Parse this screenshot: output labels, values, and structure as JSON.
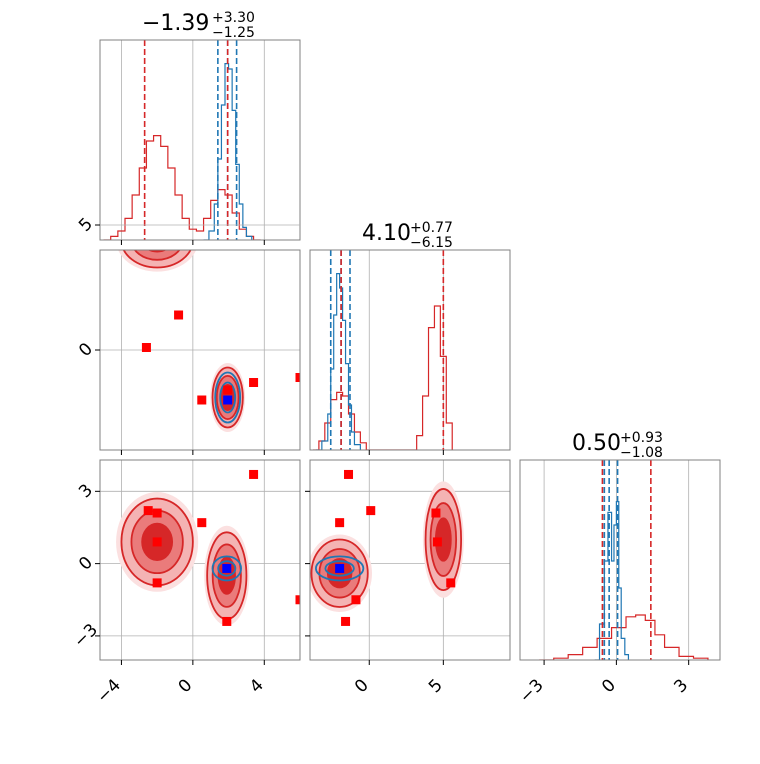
{
  "chart_data": {
    "type": "corner",
    "colors": {
      "red": "#d62728",
      "blue": "#1f77b4",
      "marker_red": "#ff0000",
      "marker_blue": "#0000ff"
    },
    "grid": true,
    "parameters": [
      {
        "title": {
          "value": "−1.39",
          "plus": "+3.30",
          "minus": "−1.25"
        },
        "range": [
          -5.2,
          6.0
        ],
        "ticks": [
          -4,
          0,
          4
        ],
        "tick_labels": [
          "−4",
          "0",
          "4"
        ]
      },
      {
        "title": {
          "value": "4.10",
          "plus": "+0.77",
          "minus": "−6.15"
        },
        "range": [
          -4.0,
          4.0
        ],
        "ticks": [
          0,
          5
        ],
        "tick_labels": [
          "0",
          "5"
        ],
        "x_range": [
          -4.0,
          9.5
        ]
      },
      {
        "title": {
          "value": "0.50",
          "plus": "+0.93",
          "minus": "−1.08"
        },
        "range": [
          -4.0,
          4.3
        ],
        "ticks": [
          -3,
          0,
          3
        ],
        "tick_labels": [
          "−3",
          "0",
          "3"
        ]
      }
    ],
    "diagonals": [
      {
        "red_hist": {
          "x": [
            -5.0,
            -4.6,
            -4.2,
            -3.8,
            -3.4,
            -3.0,
            -2.6,
            -2.2,
            -1.8,
            -1.4,
            -1.0,
            -0.6,
            -0.2,
            0.2,
            0.6,
            1.0,
            1.4,
            1.8,
            2.2,
            2.6,
            3.0,
            3.4,
            3.8
          ],
          "y": [
            0.0,
            0.02,
            0.05,
            0.12,
            0.25,
            0.4,
            0.55,
            0.58,
            0.52,
            0.4,
            0.25,
            0.12,
            0.06,
            0.05,
            0.12,
            0.22,
            0.28,
            0.25,
            0.15,
            0.06,
            0.02,
            0.0,
            0.0
          ]
        },
        "blue_hist": {
          "x": [
            0.6,
            0.9,
            1.2,
            1.4,
            1.6,
            1.8,
            2.0,
            2.2,
            2.4,
            2.6,
            2.8,
            3.0,
            3.3
          ],
          "y": [
            0.0,
            0.05,
            0.2,
            0.45,
            0.75,
            0.98,
            0.95,
            0.72,
            0.42,
            0.2,
            0.07,
            0.02,
            0.0
          ]
        },
        "red_lines": [
          -2.7,
          1.95
        ],
        "blue_lines": [
          1.4,
          1.95,
          2.45
        ]
      },
      {
        "red_hist": {
          "x": [
            -3.8,
            -3.4,
            -3.0,
            -2.6,
            -2.2,
            -1.8,
            -1.4,
            -1.0,
            -0.6,
            -0.2,
            0.2,
            2.8,
            3.2,
            3.6,
            4.0,
            4.4,
            4.8,
            5.2,
            5.6
          ],
          "y": [
            0.0,
            0.05,
            0.15,
            0.28,
            0.32,
            0.3,
            0.2,
            0.1,
            0.04,
            0.0,
            0.0,
            0.0,
            0.08,
            0.3,
            0.68,
            0.8,
            0.52,
            0.15,
            0.0
          ],
          "x_note": "second parameter density"
        },
        "blue_hist": {
          "x": [
            -3.6,
            -3.2,
            -2.8,
            -2.6,
            -2.4,
            -2.2,
            -2.0,
            -1.8,
            -1.6,
            -1.4,
            -1.2,
            -1.0,
            -0.6
          ],
          "y": [
            0.0,
            0.05,
            0.2,
            0.45,
            0.75,
            0.98,
            0.9,
            0.72,
            0.48,
            0.25,
            0.1,
            0.03,
            0.0
          ]
        },
        "red_lines": [
          -1.9,
          5.0
        ],
        "blue_lines": [
          -2.6,
          -1.9,
          -1.3
        ]
      },
      {
        "red_hist": {
          "x": [
            -3.2,
            -2.6,
            -2.0,
            -1.4,
            -0.8,
            -0.2,
            0.4,
            0.8,
            1.2,
            1.6,
            2.0,
            2.6,
            3.2,
            3.8
          ],
          "y": [
            0.0,
            0.01,
            0.03,
            0.07,
            0.12,
            0.18,
            0.24,
            0.25,
            0.22,
            0.14,
            0.07,
            0.02,
            0.01,
            0.0
          ]
        },
        "blue_hist": {
          "x": [
            -0.9,
            -0.7,
            -0.5,
            -0.35,
            -0.2,
            -0.1,
            0.0,
            0.1,
            0.2,
            0.35,
            0.5
          ],
          "y": [
            0.0,
            0.2,
            0.55,
            0.82,
            0.55,
            0.75,
            0.88,
            0.4,
            0.12,
            0.03,
            0.0
          ]
        },
        "red_lines": [
          -0.58,
          1.43
        ],
        "blue_lines": [
          -0.5,
          -0.3,
          0.05
        ]
      }
    ],
    "off_diagonals": [
      {
        "row": 1,
        "col": 0,
        "red_clusters": [
          {
            "cx": -2.0,
            "cy": 4.4,
            "rx": 2.0,
            "ry": 1.1
          },
          {
            "cx": 1.95,
            "cy": -1.9,
            "rx": 0.85,
            "ry": 1.2
          }
        ],
        "blue_clusters": [
          {
            "cx": 1.95,
            "cy": -1.9,
            "rx": 0.7,
            "ry": 1.0
          }
        ],
        "red_markers": [
          [
            -2.0,
            5.7
          ],
          [
            -2.0,
            4.3
          ],
          [
            -0.8,
            1.4
          ],
          [
            -2.6,
            0.1
          ],
          [
            0.5,
            -2.0
          ],
          [
            3.4,
            -1.3
          ],
          [
            6.0,
            -1.1
          ],
          [
            1.95,
            -1.6
          ]
        ],
        "blue_marker": [
          1.95,
          -2.0
        ]
      },
      {
        "row": 2,
        "col": 0,
        "red_clusters": [
          {
            "cx": -2.0,
            "cy": 0.9,
            "rx": 2.0,
            "ry": 1.8
          },
          {
            "cx": 1.9,
            "cy": -0.5,
            "rx": 1.1,
            "ry": 1.8
          }
        ],
        "blue_clusters": [
          {
            "cx": 1.9,
            "cy": -0.2,
            "rx": 0.8,
            "ry": 0.5
          }
        ],
        "red_markers": [
          [
            -2.5,
            2.2
          ],
          [
            -2.0,
            2.1
          ],
          [
            0.5,
            1.7
          ],
          [
            -2.0,
            0.9
          ],
          [
            -2.0,
            -0.8
          ],
          [
            3.4,
            3.7
          ],
          [
            6.0,
            -1.5
          ],
          [
            1.9,
            -2.4
          ]
        ],
        "blue_marker": [
          1.9,
          -0.2
        ]
      },
      {
        "row": 2,
        "col": 1,
        "red_clusters": [
          {
            "cx": -2.0,
            "cy": -0.4,
            "rx": 1.9,
            "ry": 1.4
          },
          {
            "cx": 5.0,
            "cy": 1.0,
            "rx": 1.2,
            "ry": 2.1
          }
        ],
        "blue_clusters": [
          {
            "cx": -2.0,
            "cy": -0.2,
            "rx": 1.6,
            "ry": 0.5
          }
        ],
        "red_markers": [
          [
            -1.4,
            3.7
          ],
          [
            -2.0,
            1.7
          ],
          [
            0.1,
            2.2
          ],
          [
            4.5,
            2.1
          ],
          [
            4.6,
            0.9
          ],
          [
            5.5,
            -0.8
          ],
          [
            -0.9,
            -1.5
          ],
          [
            -1.6,
            -2.4
          ],
          [
            -2.0,
            -0.2
          ]
        ],
        "blue_marker": [
          -2.0,
          -0.2
        ]
      }
    ]
  }
}
